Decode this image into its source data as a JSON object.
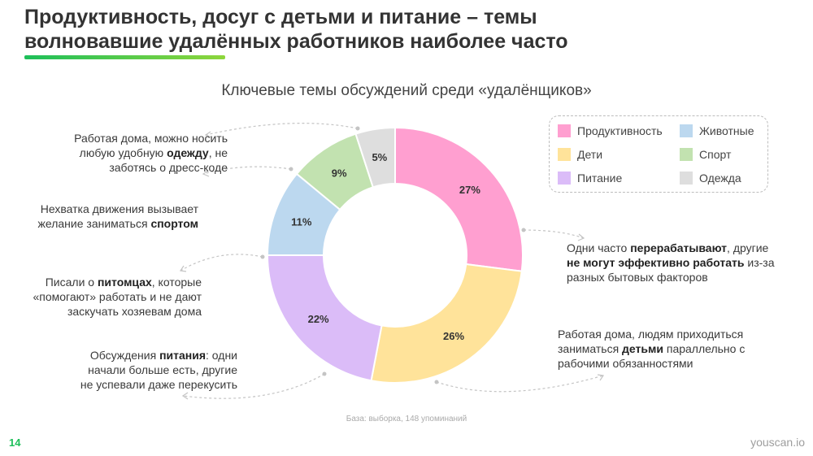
{
  "slide": {
    "headline_line1": "Продуктивность, досуг с детьми и питание – темы",
    "headline_line2": "волновавшие удалённых работников наиболее часто",
    "page_number": "14",
    "brand": "youscan.io",
    "footnote": "База: выборка, 148 упоминаний"
  },
  "colors": {
    "accent": "#1dbf5a"
  },
  "chart_data": {
    "type": "pie",
    "donut": true,
    "title": "Ключевые темы обсуждений среди «удалёнщиков»",
    "categories": [
      "Продуктивность",
      "Дети",
      "Питание",
      "Животные",
      "Спорт",
      "Одежда"
    ],
    "values": [
      27,
      26,
      22,
      11,
      9,
      5
    ],
    "labels": [
      "27%",
      "26%",
      "22%",
      "11%",
      "9%",
      "5%"
    ],
    "colors": [
      "#ff9fd0",
      "#ffe39a",
      "#dbbcf8",
      "#bcd8ef",
      "#c2e2b0",
      "#dedede"
    ],
    "legend": [
      {
        "label": "Продуктивность",
        "color": "#ff9fd0"
      },
      {
        "label": "Животные",
        "color": "#bcd8ef"
      },
      {
        "label": "Дети",
        "color": "#ffe39a"
      },
      {
        "label": "Спорт",
        "color": "#c2e2b0"
      },
      {
        "label": "Питание",
        "color": "#dbbcf8"
      },
      {
        "label": "Одежда",
        "color": "#dedede"
      }
    ],
    "legend_position": "top-right",
    "annotations": {
      "clothing": {
        "t1": "Работая дома, можно носить",
        "t2": "любую удобную ",
        "b1": "одежду",
        "t3": ", не",
        "t4": "заботясь о дресс-коде"
      },
      "sport": {
        "t1": "Нехватка движения вызывает",
        "t2": "желание заниматься ",
        "b1": "спортом"
      },
      "pets": {
        "t1": "Писали о ",
        "b1": "питомцах",
        "t2": ", которые",
        "t3": "«помогают» работать и не дают",
        "t4": "заскучать хозяевам дома"
      },
      "food": {
        "t1": "Обсуждения ",
        "b1": "питания",
        "t2": ": одни",
        "t3": "начали больше есть, другие",
        "t4": "не успевали даже перекусить"
      },
      "productivity": {
        "t1": "Одни часто ",
        "b1": "перерабатывают",
        "t2": ", другие",
        "b2": "не могут эффективно работать",
        "t3": " из-за",
        "t4": "разных бытовых факторов"
      },
      "kids": {
        "t1": "Работая дома, людям приходиться",
        "t2": "заниматься ",
        "b1": "детьми",
        "t3": " параллельно с",
        "t4": "рабочими обязанностями"
      }
    }
  }
}
